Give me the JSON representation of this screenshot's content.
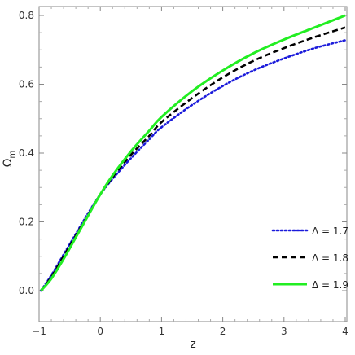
{
  "chart_data": {
    "type": "line",
    "xlabel": "z",
    "ylabel_main": "Ω",
    "ylabel_sub": "m",
    "xlim": [
      -1,
      4
    ],
    "ylim": [
      0,
      0.8
    ],
    "xticks": [
      -1,
      0,
      1,
      2,
      3,
      4
    ],
    "yticks": [
      0.0,
      0.2,
      0.4,
      0.6,
      0.8
    ],
    "xtick_labels": [
      "−1",
      "0",
      "1",
      "2",
      "3",
      "4"
    ],
    "ytick_labels": [
      "0.0",
      "0.2",
      "0.4",
      "0.6",
      "0.8"
    ],
    "grid": false,
    "legend_position": "bottom-right",
    "series": [
      {
        "name": "Δ = 1.7",
        "color": "#1a1adb",
        "style": "dotted",
        "x": [
          -0.97,
          -0.8,
          -0.6,
          -0.4,
          -0.2,
          0.0,
          0.2,
          0.5,
          0.8,
          1.0,
          1.5,
          2.0,
          2.5,
          3.0,
          3.5,
          4.0
        ],
        "y": [
          0.0,
          0.045,
          0.105,
          0.165,
          0.225,
          0.28,
          0.325,
          0.385,
          0.44,
          0.475,
          0.54,
          0.595,
          0.64,
          0.675,
          0.705,
          0.728
        ]
      },
      {
        "name": "Δ = 1.8",
        "color": "#000000",
        "style": "dashed",
        "x": [
          -0.97,
          -0.8,
          -0.6,
          -0.4,
          -0.2,
          0.0,
          0.2,
          0.5,
          0.8,
          1.0,
          1.5,
          2.0,
          2.5,
          3.0,
          3.5,
          4.0
        ],
        "y": [
          0.0,
          0.04,
          0.1,
          0.16,
          0.22,
          0.28,
          0.33,
          0.395,
          0.45,
          0.49,
          0.56,
          0.62,
          0.668,
          0.705,
          0.737,
          0.765
        ]
      },
      {
        "name": "Δ = 1.9",
        "color": "#22ee22",
        "style": "solid",
        "x": [
          -0.97,
          -0.8,
          -0.6,
          -0.4,
          -0.2,
          0.0,
          0.2,
          0.5,
          0.8,
          1.0,
          1.5,
          2.0,
          2.5,
          3.0,
          3.5,
          4.0
        ],
        "y": [
          0.0,
          0.035,
          0.092,
          0.155,
          0.218,
          0.28,
          0.335,
          0.405,
          0.465,
          0.505,
          0.58,
          0.64,
          0.69,
          0.73,
          0.765,
          0.8
        ]
      }
    ]
  }
}
